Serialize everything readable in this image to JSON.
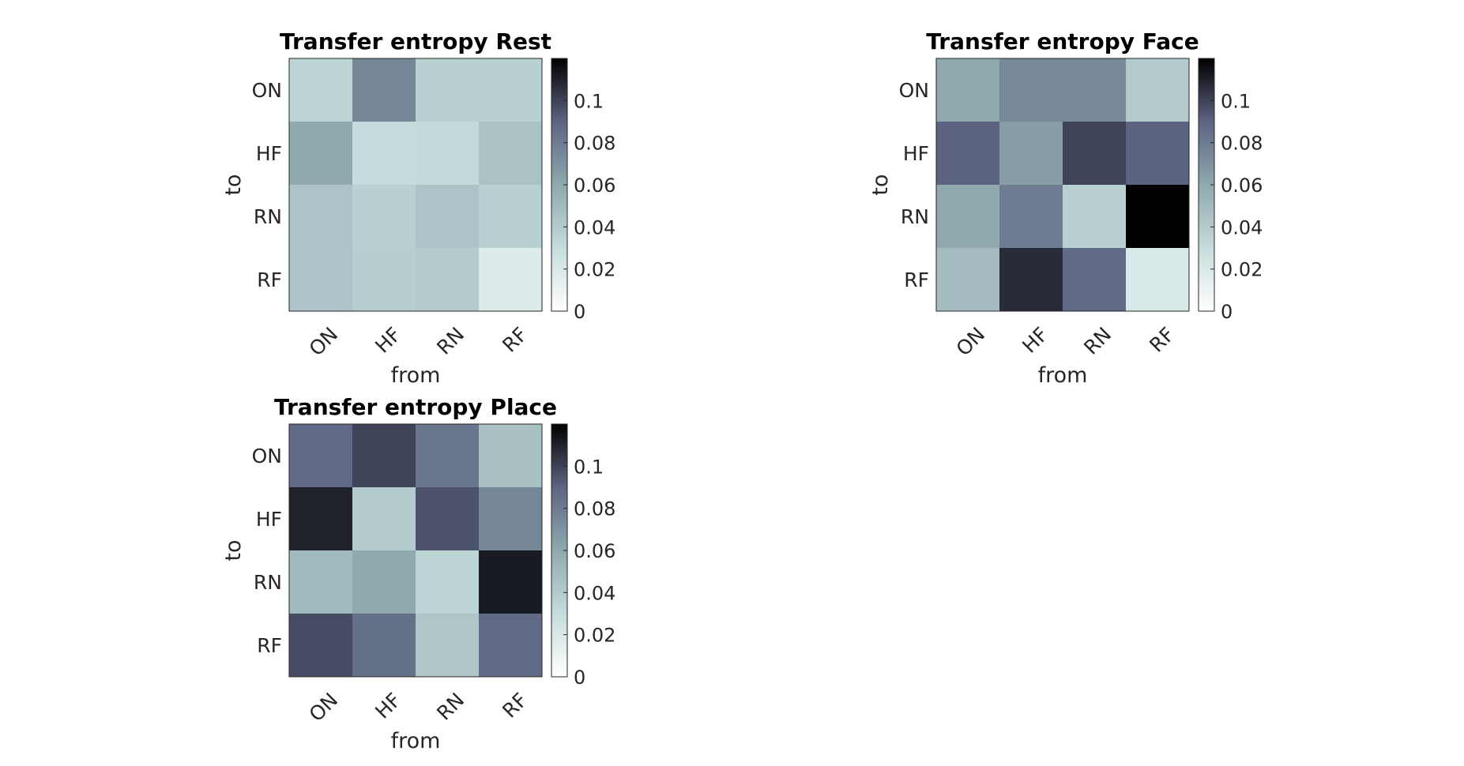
{
  "chart_data": [
    {
      "type": "heatmap",
      "title": "Transfer entropy Rest",
      "xlabel": "from",
      "ylabel": "to",
      "x_categories": [
        "ON",
        "HF",
        "RN",
        "RF"
      ],
      "y_categories": [
        "ON",
        "HF",
        "RN",
        "RF"
      ],
      "values": [
        [
          0.035,
          0.075,
          0.037,
          0.037
        ],
        [
          0.06,
          0.03,
          0.031,
          0.045
        ],
        [
          0.044,
          0.037,
          0.044,
          0.037
        ],
        [
          0.044,
          0.038,
          0.04,
          0.018
        ]
      ],
      "colorbar": {
        "range": [
          0,
          0.12
        ],
        "ticks": [
          "0",
          "0.02",
          "0.04",
          "0.06",
          "0.08",
          "0.1"
        ]
      }
    },
    {
      "type": "heatmap",
      "title": "Transfer entropy Face",
      "xlabel": "from",
      "ylabel": "to",
      "x_categories": [
        "ON",
        "HF",
        "RN",
        "RF"
      ],
      "y_categories": [
        "ON",
        "HF",
        "RN",
        "RF"
      ],
      "values": [
        [
          0.06,
          0.074,
          0.074,
          0.04
        ],
        [
          0.09,
          0.065,
          0.1,
          0.09
        ],
        [
          0.06,
          0.08,
          0.037,
          0.12
        ],
        [
          0.048,
          0.107,
          0.088,
          0.02
        ]
      ],
      "colorbar": {
        "range": [
          0,
          0.12
        ],
        "ticks": [
          "0",
          "0.02",
          "0.04",
          "0.06",
          "0.08",
          "0.1"
        ]
      }
    },
    {
      "type": "heatmap",
      "title": "Transfer entropy Place",
      "xlabel": "from",
      "ylabel": "to",
      "x_categories": [
        "ON",
        "HF",
        "RN",
        "RF"
      ],
      "y_categories": [
        "ON",
        "HF",
        "RN",
        "RF"
      ],
      "values": [
        [
          0.088,
          0.1,
          0.082,
          0.046
        ],
        [
          0.11,
          0.04,
          0.095,
          0.075
        ],
        [
          0.05,
          0.06,
          0.035,
          0.112
        ],
        [
          0.097,
          0.085,
          0.043,
          0.088
        ]
      ],
      "colorbar": {
        "range": [
          0,
          0.12
        ],
        "ticks": [
          "0",
          "0.02",
          "0.04",
          "0.06",
          "0.08",
          "0.1"
        ]
      }
    }
  ]
}
